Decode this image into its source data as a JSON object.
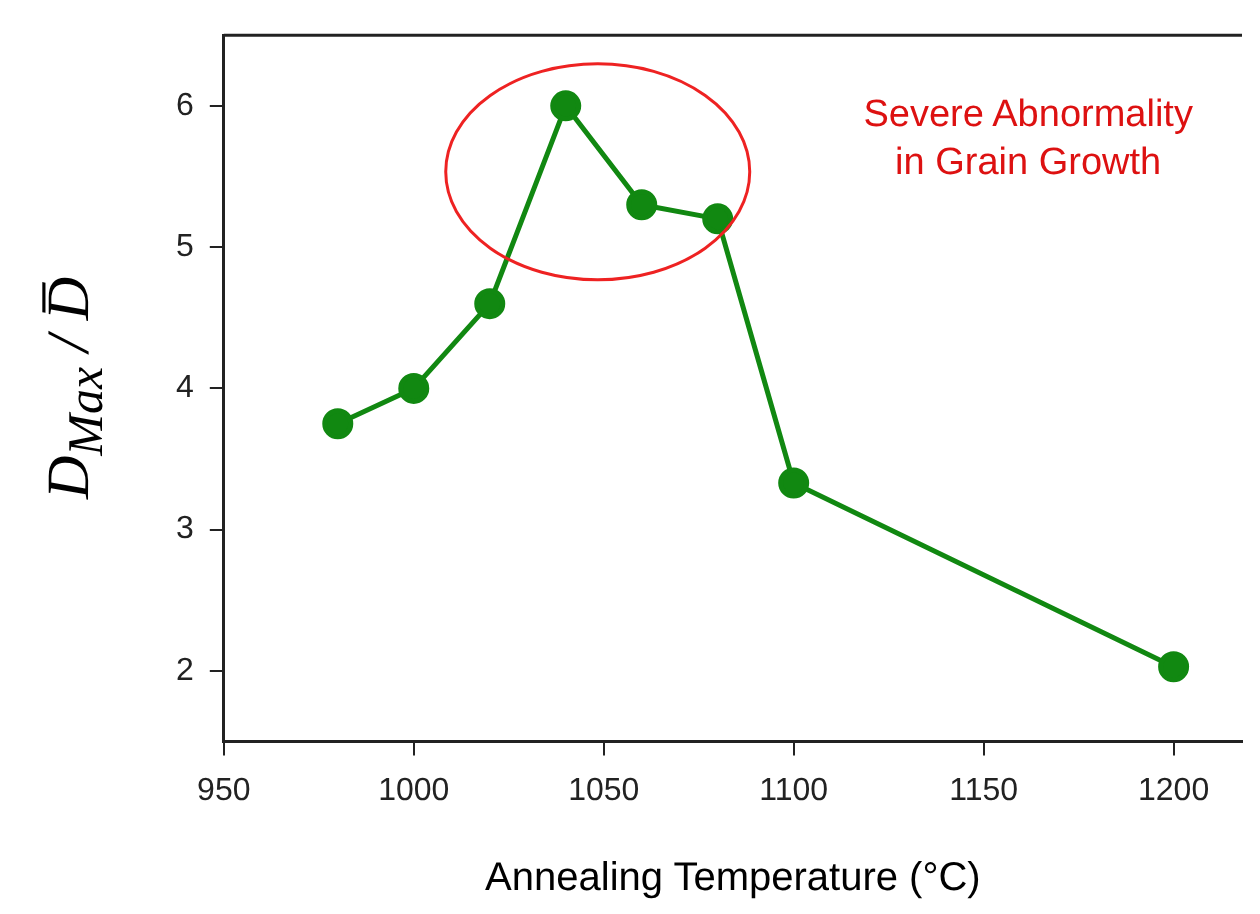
{
  "chart_data": {
    "type": "line",
    "xlabel": "Annealing Temperature (°C)",
    "ylabel": "D$_{Max}$ / D̅",
    "x": [
      980,
      1000,
      1020,
      1040,
      1060,
      1080,
      1100,
      1200
    ],
    "series": [
      {
        "color": "#118811",
        "values": [
          3.75,
          4.0,
          4.6,
          6.0,
          5.3,
          5.2,
          3.33,
          2.03
        ]
      }
    ],
    "xlim": [
      950,
      1218
    ],
    "xticks": [
      950,
      1000,
      1050,
      1100,
      1150,
      1200
    ],
    "ylim": [
      1.5,
      6.5
    ],
    "yticks": [
      2,
      3,
      4,
      5,
      6
    ],
    "grid": false,
    "legend": false,
    "marker": "circle",
    "line_style": "solid",
    "annotations": [
      "Severe Abnormality\nin Grain Growth"
    ]
  }
}
